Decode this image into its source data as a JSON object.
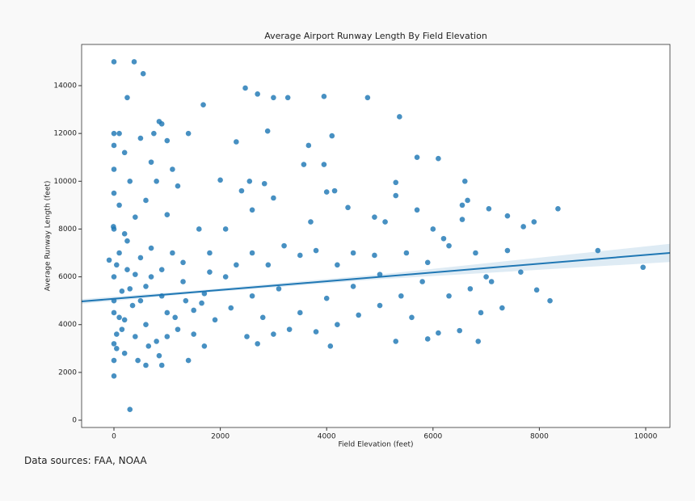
{
  "chart_data": {
    "type": "scatter",
    "title": "Average Airport Runway Length By Field Elevation",
    "x_label": "Field Elevation (feet)",
    "y_label": "Average Runway Length (feet)",
    "source": "Data sources: FAA, NOAA",
    "xlim": [
      -608,
      10456
    ],
    "ylim": [
      -304,
      15725
    ],
    "xticks": [
      0,
      2000,
      4000,
      6000,
      8000,
      10000
    ],
    "yticks": [
      0,
      2000,
      4000,
      6000,
      8000,
      10000,
      12000,
      14000
    ],
    "color": "#1f77b4",
    "series": [
      {
        "color": "#1f77b4",
        "x": [
          0,
          380,
          550,
          250,
          1680,
          2470,
          2700,
          3000,
          3270,
          3950,
          4770,
          5370,
          2890,
          4100,
          2300,
          3660,
          5700,
          6100,
          3570,
          3950,
          2000,
          2550,
          2830,
          4000,
          4150,
          5300,
          6600,
          2400,
          5300,
          6650,
          6550,
          7050,
          8350,
          7400,
          7900,
          6550,
          7700,
          9100,
          9950,
          7950,
          8200,
          7650,
          7300,
          6850,
          6500,
          5300,
          4070,
          6100,
          6900,
          7000,
          7400,
          6800,
          6300,
          5900,
          5500,
          4900,
          4500,
          4200,
          3800,
          3500,
          3200,
          2900,
          2600,
          2300,
          2100,
          1800,
          2100,
          2600,
          3000,
          3700,
          4400,
          4900,
          5100,
          5700,
          6000,
          6200,
          5800,
          5400,
          5000,
          4600,
          4200,
          3800,
          3300,
          2800,
          2500,
          2700,
          3000,
          3500,
          4000,
          4500,
          5000,
          5600,
          5900,
          6300,
          6700,
          7100,
          3100,
          2600,
          2200,
          1900,
          1700,
          1500,
          1300,
          1200,
          1000,
          900,
          800,
          700,
          600,
          500,
          400,
          300,
          200,
          100,
          50,
          0,
          0,
          0,
          0,
          0,
          0,
          0,
          100,
          200,
          0,
          150,
          0,
          0,
          300,
          -90,
          -10,
          50,
          250,
          400,
          600,
          800,
          850,
          900,
          1100,
          1400,
          1200,
          1000,
          700,
          500,
          350,
          250,
          150,
          100,
          50,
          0,
          200,
          450,
          650,
          850,
          1000,
          1150,
          1350,
          1500,
          1650,
          1300,
          1100,
          900,
          600,
          400,
          200,
          100,
          300,
          700,
          500,
          750,
          1000,
          1600,
          1800,
          1700,
          1400,
          900,
          600
        ],
        "y": [
          15000,
          15000,
          14500,
          13500,
          13200,
          13900,
          13650,
          13500,
          13500,
          13550,
          13500,
          12700,
          12100,
          11900,
          11650,
          11500,
          11000,
          10950,
          10700,
          10700,
          10050,
          10000,
          9900,
          9550,
          9600,
          9950,
          10000,
          9600,
          9400,
          9200,
          9000,
          8850,
          8850,
          8550,
          8300,
          8400,
          8100,
          7100,
          6400,
          5450,
          5000,
          6200,
          4700,
          3300,
          3750,
          3300,
          3100,
          3650,
          4500,
          6000,
          7100,
          7000,
          7300,
          6600,
          7000,
          6900,
          7000,
          6500,
          7100,
          6900,
          7300,
          6500,
          7000,
          6500,
          6000,
          7000,
          8000,
          8800,
          9300,
          8300,
          8900,
          8500,
          8300,
          8800,
          8000,
          7600,
          5800,
          5200,
          4800,
          4400,
          4000,
          3700,
          3800,
          4300,
          3500,
          3200,
          3600,
          4500,
          5100,
          5600,
          6100,
          4300,
          3400,
          5200,
          5500,
          5800,
          5500,
          5200,
          4700,
          4200,
          5300,
          4600,
          5800,
          3800,
          4500,
          5200,
          3300,
          6000,
          4000,
          6800,
          3500,
          5500,
          4200,
          7000,
          3000,
          5000,
          6000,
          4500,
          8000,
          9500,
          11500,
          12000,
          12000,
          11200,
          10500,
          3800,
          2500,
          1850,
          450,
          6700,
          8100,
          6500,
          7500,
          8500,
          9200,
          10000,
          12500,
          12400,
          10500,
          12000,
          9800,
          8600,
          7200,
          5000,
          4800,
          6300,
          5400,
          4300,
          3600,
          3200,
          2800,
          2500,
          3100,
          2700,
          3500,
          4300,
          5000,
          3600,
          4900,
          6600,
          7000,
          6300,
          5600,
          6100,
          7800,
          9000,
          10000,
          10800,
          11800,
          12000,
          11700,
          8000,
          6200,
          3100,
          2500,
          2300,
          2300
        ]
      }
    ],
    "regression": {
      "color": "#1f77b4",
      "x": [
        -608,
        1500,
        5000,
        10456
      ],
      "y": [
        4970,
        5357,
        5999,
        7000
      ],
      "lower": [
        4870,
        5300,
        5900,
        6620
      ],
      "upper": [
        5070,
        5420,
        6100,
        7380
      ]
    }
  }
}
